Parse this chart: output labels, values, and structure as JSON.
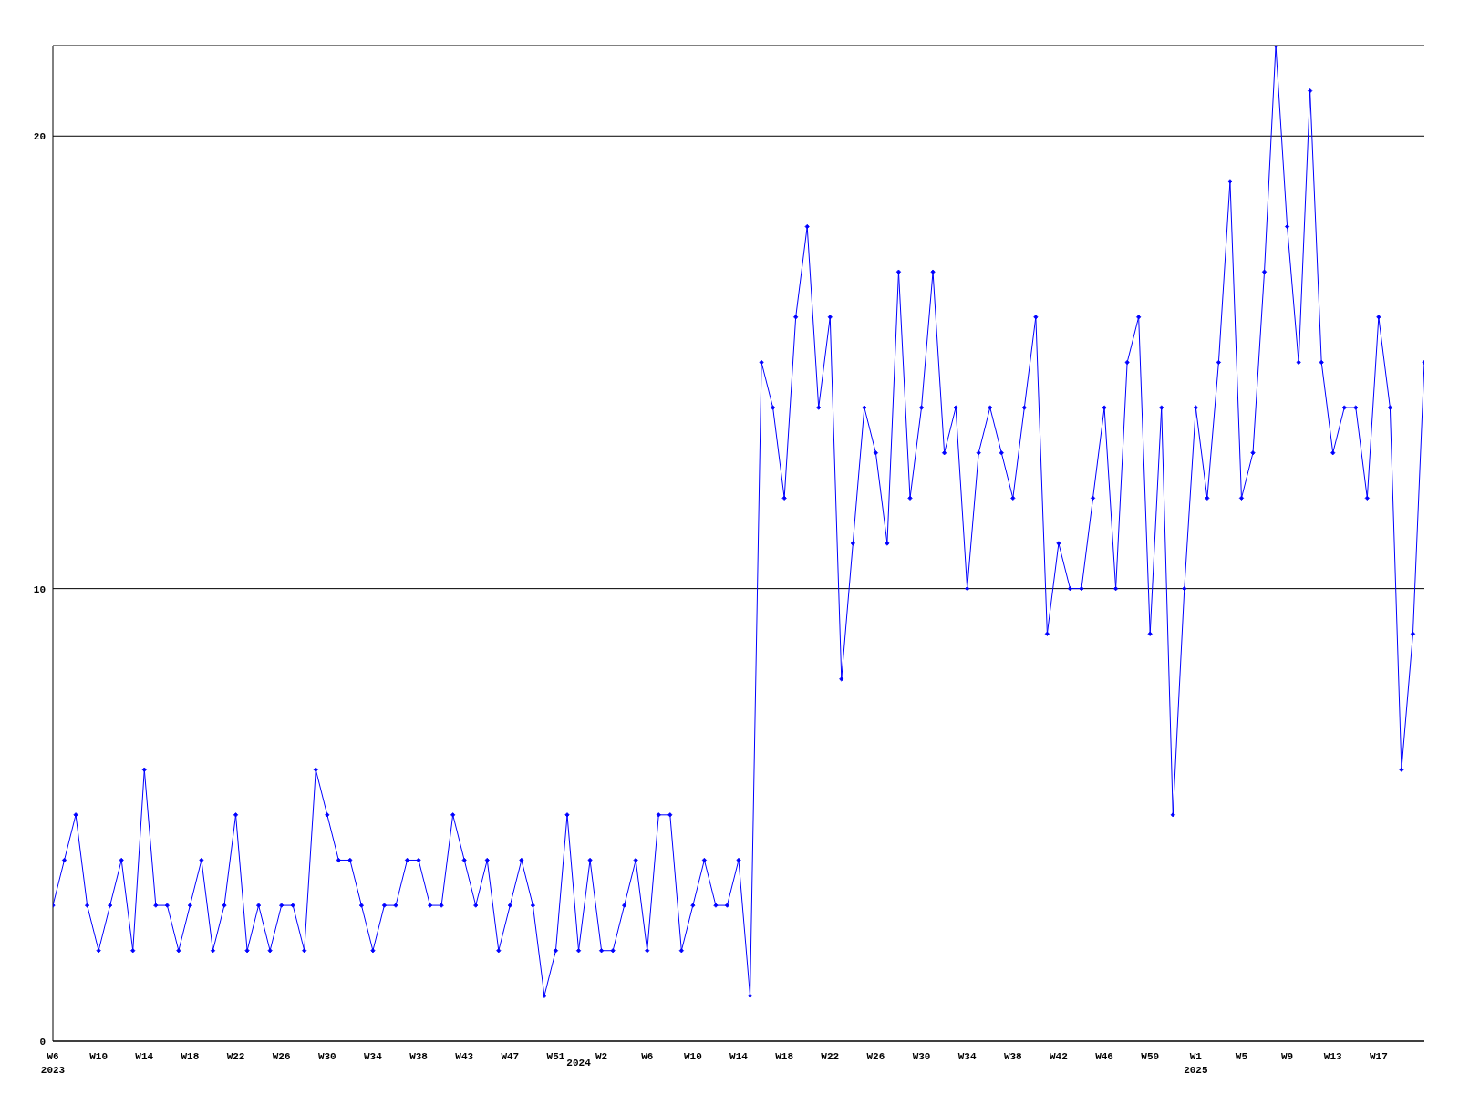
{
  "chart_data": {
    "type": "line",
    "categories": [
      "W6\n2023",
      null,
      null,
      null,
      "W10",
      null,
      null,
      null,
      "W14",
      null,
      null,
      null,
      "W18",
      null,
      null,
      null,
      "W22",
      null,
      null,
      null,
      "W26",
      null,
      null,
      null,
      "W30",
      null,
      null,
      null,
      "W34",
      null,
      null,
      null,
      "W38",
      null,
      null,
      null,
      "W43",
      null,
      null,
      null,
      "W47",
      null,
      null,
      null,
      "W51",
      null,
      "\n2024",
      null,
      "W2",
      null,
      null,
      null,
      "W6",
      null,
      null,
      null,
      "W10",
      null,
      null,
      null,
      "W14",
      null,
      null,
      null,
      "W18",
      null,
      null,
      null,
      "W22",
      null,
      null,
      null,
      "W26",
      null,
      null,
      null,
      "W30",
      null,
      null,
      null,
      "W34",
      null,
      null,
      null,
      "W38",
      null,
      null,
      null,
      "W42",
      null,
      null,
      null,
      "W46",
      null,
      null,
      null,
      "W50",
      null,
      null,
      null,
      "W1\n2025",
      null,
      null,
      null,
      "W5",
      null,
      null,
      null,
      "W9",
      null,
      null,
      null,
      "W13",
      null,
      null,
      null,
      "W17",
      null,
      null,
      null,
      null
    ],
    "series": [
      {
        "color": "#0000ff",
        "values": [
          3,
          4,
          5,
          3,
          2,
          3,
          4,
          2,
          6,
          3,
          3,
          2,
          3,
          4,
          2,
          3,
          5,
          2,
          3,
          2,
          3,
          3,
          2,
          6,
          5,
          4,
          4,
          3,
          2,
          3,
          3,
          4,
          4,
          3,
          3,
          5,
          4,
          3,
          4,
          2,
          3,
          4,
          3,
          1,
          2,
          5,
          2,
          4,
          2,
          2,
          3,
          4,
          2,
          5,
          5,
          2,
          3,
          4,
          3,
          3,
          4,
          1,
          15,
          14,
          12,
          16,
          18,
          14,
          16,
          8,
          11,
          14,
          13,
          11,
          17,
          12,
          14,
          17,
          13,
          14,
          10,
          13,
          14,
          13,
          12,
          14,
          16,
          9,
          11,
          10,
          10,
          12,
          14,
          10,
          15,
          16,
          9,
          14,
          5,
          10,
          14,
          12,
          15,
          19,
          12,
          13,
          17,
          22,
          18,
          15,
          21,
          15,
          13,
          14,
          14,
          12,
          16,
          14,
          6,
          9,
          15
        ]
      }
    ],
    "ylim": [
      0,
      22
    ],
    "yticks": [
      0,
      10,
      20
    ],
    "grid": "y",
    "marker": "diamond",
    "line_style": "solid",
    "legend": false
  }
}
